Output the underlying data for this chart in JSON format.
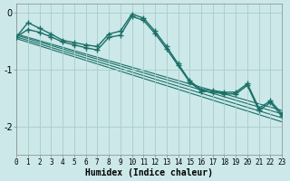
{
  "xlabel": "Humidex (Indice chaleur)",
  "background_color": "#cce8e8",
  "grid_color": "#aacccc",
  "line_color": "#1a7068",
  "xlim": [
    0,
    23
  ],
  "ylim": [
    -2.5,
    0.15
  ],
  "yticks": [
    0,
    -1,
    -2
  ],
  "xticks": [
    0,
    1,
    2,
    3,
    4,
    5,
    6,
    7,
    8,
    9,
    10,
    11,
    12,
    13,
    14,
    15,
    16,
    17,
    18,
    19,
    20,
    21,
    22,
    23
  ],
  "curve1_x": [
    0,
    1,
    2,
    3,
    4,
    5,
    6,
    7,
    8,
    9,
    10,
    11,
    12,
    13,
    14,
    15,
    16,
    17,
    18,
    19,
    20,
    21,
    22,
    23
  ],
  "curve1_y": [
    -0.43,
    -0.18,
    -0.28,
    -0.38,
    -0.49,
    -0.53,
    -0.57,
    -0.6,
    -0.38,
    -0.33,
    -0.03,
    -0.1,
    -0.33,
    -0.6,
    -0.9,
    -1.2,
    -1.35,
    -1.37,
    -1.4,
    -1.4,
    -1.25,
    -1.68,
    -1.55,
    -1.78
  ],
  "curve2_x": [
    0,
    1,
    2,
    3,
    4,
    5,
    6,
    7,
    8,
    9,
    10,
    11,
    12,
    13,
    14,
    15,
    16,
    17,
    18,
    19,
    20,
    21,
    22,
    23
  ],
  "curve2_y": [
    -0.43,
    -0.3,
    -0.35,
    -0.43,
    -0.52,
    -0.57,
    -0.62,
    -0.66,
    -0.44,
    -0.4,
    -0.07,
    -0.14,
    -0.37,
    -0.64,
    -0.93,
    -1.22,
    -1.38,
    -1.4,
    -1.43,
    -1.43,
    -1.28,
    -1.72,
    -1.58,
    -1.82
  ],
  "reg_lines": [
    {
      "x0": 0,
      "y0": -0.38,
      "x1": 23,
      "y1": -1.72
    },
    {
      "x0": 0,
      "y0": -0.4,
      "x1": 23,
      "y1": -1.78
    },
    {
      "x0": 0,
      "y0": -0.43,
      "x1": 23,
      "y1": -1.85
    },
    {
      "x0": 0,
      "y0": -0.46,
      "x1": 23,
      "y1": -1.92
    }
  ]
}
